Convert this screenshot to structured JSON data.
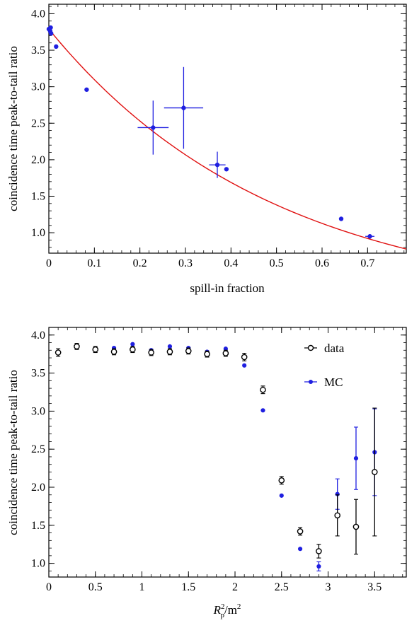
{
  "chart_data": [
    {
      "type": "scatter",
      "xlabel": "spill-in fraction",
      "ylabel": "coincidence time peak-to-tail ratio",
      "xlim": [
        0,
        0.785
      ],
      "ylim": [
        0.72,
        4.13
      ],
      "xticks": [
        "0",
        "0.1",
        "0.2",
        "0.3",
        "0.4",
        "0.5",
        "0.6",
        "0.7"
      ],
      "yticks": [
        "1.0",
        "1.5",
        "2.0",
        "2.5",
        "3.0",
        "3.5",
        "4.0"
      ],
      "grid": false,
      "series": [
        {
          "color": "#1f1fe0",
          "points": [
            {
              "x": 0.0,
              "y": 3.79,
              "xerr": 0,
              "yerr": 0
            },
            {
              "x": 0.003,
              "y": 3.76,
              "xerr": 0,
              "yerr": 0
            },
            {
              "x": 0.004,
              "y": 3.81,
              "xerr": 0,
              "yerr": 0
            },
            {
              "x": 0.005,
              "y": 3.73,
              "xerr": 0,
              "yerr": 0
            },
            {
              "x": 0.016,
              "y": 3.55,
              "xerr": 0,
              "yerr": 0
            },
            {
              "x": 0.083,
              "y": 2.96,
              "xerr": 0,
              "yerr": 0
            },
            {
              "x": 0.229,
              "y": 2.44,
              "xerr": 0.034,
              "yerr": 0.37
            },
            {
              "x": 0.296,
              "y": 2.71,
              "xerr": 0.043,
              "yerr": 0.56
            },
            {
              "x": 0.37,
              "y": 1.93,
              "xerr": 0.018,
              "yerr": 0.18
            },
            {
              "x": 0.39,
              "y": 1.87,
              "xerr": 0,
              "yerr": 0
            },
            {
              "x": 0.642,
              "y": 1.19,
              "xerr": 0,
              "yerr": 0
            },
            {
              "x": 0.705,
              "y": 0.95,
              "xerr": 0.01,
              "yerr": 0.03
            }
          ]
        }
      ],
      "fit_curve": {
        "color": "#e01010",
        "a": 3.79,
        "b": 0.0,
        "c": 2.02
      }
    },
    {
      "type": "scatter",
      "xlabel": "R²p/m²",
      "ylabel": "coincidence time peak-to-tail ratio",
      "xlim": [
        0,
        3.84
      ],
      "ylim": [
        0.82,
        4.1
      ],
      "xticks": [
        "0",
        "0.5",
        "1",
        "1.5",
        "2",
        "2.5",
        "3",
        "3.5"
      ],
      "yticks": [
        "1.0",
        "1.5",
        "2.0",
        "2.5",
        "3.0",
        "3.5",
        "4.0"
      ],
      "grid": false,
      "legend": {
        "position": "top-right",
        "entries": [
          "data",
          "MC"
        ]
      },
      "x": [
        0.1,
        0.3,
        0.5,
        0.7,
        0.9,
        1.1,
        1.3,
        1.5,
        1.7,
        1.9,
        2.1,
        2.3,
        2.5,
        2.7,
        2.9,
        3.1,
        3.3,
        3.5
      ],
      "series": [
        {
          "name": "data",
          "color": "#000000",
          "marker": "open-circle",
          "values": [
            3.77,
            3.85,
            3.81,
            3.78,
            3.81,
            3.77,
            3.78,
            3.79,
            3.75,
            3.76,
            3.71,
            3.28,
            2.09,
            1.42,
            1.16,
            1.63,
            1.48,
            2.2
          ],
          "errors": [
            0.05,
            0.04,
            0.04,
            0.04,
            0.04,
            0.04,
            0.04,
            0.04,
            0.04,
            0.04,
            0.05,
            0.05,
            0.05,
            0.05,
            0.09,
            0.27,
            0.36,
            0.84
          ]
        },
        {
          "name": "MC",
          "color": "#1f1fe0",
          "marker": "filled-circle",
          "values": [
            3.78,
            3.84,
            3.82,
            3.83,
            3.88,
            3.8,
            3.85,
            3.83,
            3.78,
            3.82,
            3.6,
            3.01,
            1.89,
            1.19,
            0.96,
            1.91,
            2.38,
            2.46
          ],
          "errors": [
            0,
            0,
            0,
            0,
            0,
            0,
            0,
            0,
            0,
            0,
            0,
            0,
            0,
            0,
            0.06,
            0.2,
            0.41,
            0.57
          ]
        }
      ]
    }
  ]
}
